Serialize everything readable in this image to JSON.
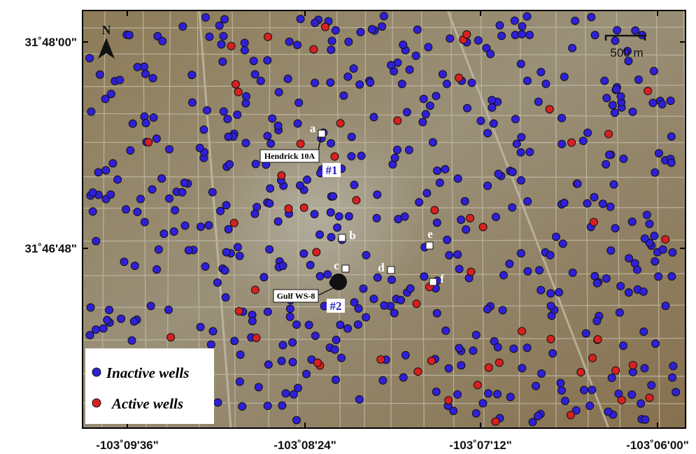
{
  "map": {
    "north": "N",
    "scale_label": "500 m",
    "x_ticks": [
      "-103˚09'36\"",
      "-103˚08'24\"",
      "-103˚07'12\"",
      "-103˚06'00\""
    ],
    "y_ticks": [
      "31˚48'00\"",
      "31˚46'48\""
    ],
    "points": [
      "a",
      "b",
      "c",
      "d",
      "e",
      "f"
    ],
    "wells": {
      "hendrick": "Hendrick 10A",
      "gulf": "Gulf WS-8",
      "id1": "#1",
      "id2": "#2"
    },
    "legend": {
      "inactive": "Inactive wells",
      "active": "Active wells"
    }
  }
}
